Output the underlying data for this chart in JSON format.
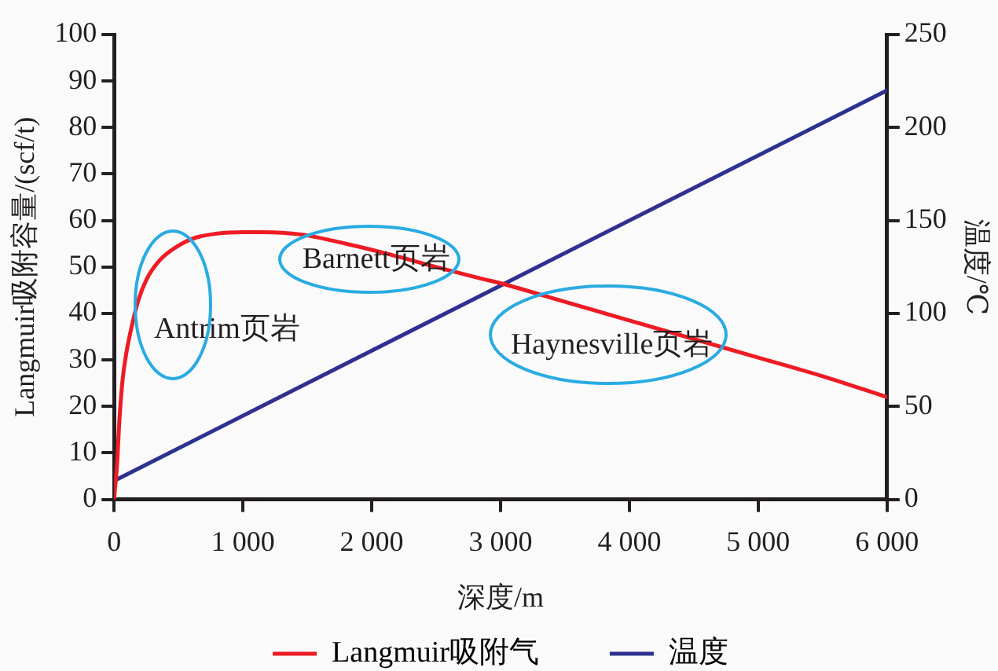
{
  "chart_data": {
    "type": "line",
    "xlabel": "深度/m",
    "ylabel": "Langmuir吸附容量/(scf/t)",
    "y2label": "温度/℃",
    "xlim": [
      0,
      6000
    ],
    "xticks": [
      0,
      {
        "value": 1000,
        "label": "1 000"
      },
      {
        "value": 2000,
        "label": "2 000"
      },
      {
        "value": 3000,
        "label": "3 000"
      },
      {
        "value": 4000,
        "label": "4 000"
      },
      {
        "value": 5000,
        "label": "5 000"
      },
      {
        "value": 6000,
        "label": "6 000"
      }
    ],
    "ylim": [
      0,
      100
    ],
    "yticks": [
      0,
      10,
      20,
      30,
      40,
      50,
      60,
      70,
      80,
      90,
      100
    ],
    "y2lim": [
      0,
      250
    ],
    "y2ticks": [
      0,
      50,
      100,
      150,
      200,
      250
    ],
    "series": [
      {
        "name": "Langmuir吸附气",
        "color": "#ed1c24",
        "x": [
          0,
          25,
          40,
          65,
          95,
          135,
          190,
          255,
          340,
          440,
          600,
          800,
          1000,
          1150,
          1450,
          1800,
          2100,
          2500,
          2850,
          3000,
          3500,
          4000,
          4500,
          5000,
          5500,
          6000
        ],
        "values": [
          0,
          8.5,
          16.5,
          25.5,
          31.5,
          37,
          43,
          47.5,
          51,
          53.5,
          56,
          57.2,
          57.5,
          57.5,
          57,
          55,
          53,
          50,
          47.5,
          46.5,
          42.5,
          38.5,
          34.5,
          30.5,
          26.5,
          22
        ]
      },
      {
        "name": "温度",
        "color": "#2e3192",
        "axis": "y2",
        "x": [
          0,
          6000
        ],
        "values": [
          10,
          220
        ]
      }
    ],
    "annotations": [
      "Antrim页岩",
      "Barnett页岩",
      "Haynesville页岩"
    ],
    "legend": "bottom",
    "grid": false,
    "marker": "none",
    "line_style": "solid"
  }
}
